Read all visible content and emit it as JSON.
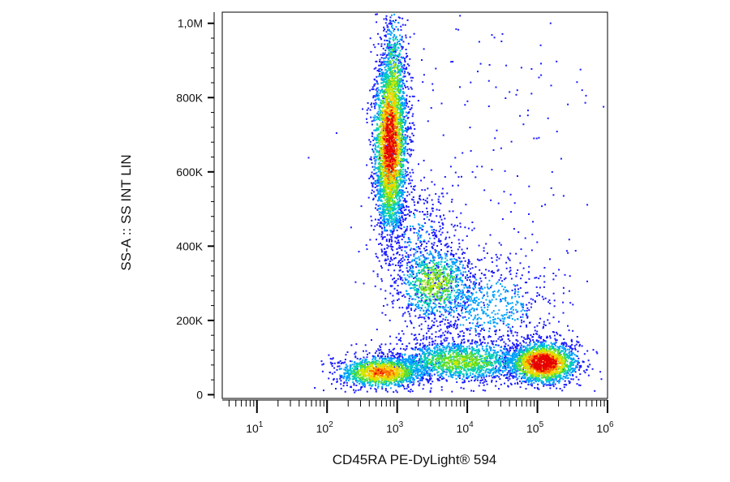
{
  "chart_data": {
    "type": "scatter",
    "style": "flow-cytometry density dot plot",
    "xlabel": "CD45RA PE-DyLight® 594",
    "ylabel": "SS-A :: SS INT LIN",
    "x_scale": "log",
    "xlim": [
      3.2,
      1000000
    ],
    "y_scale": "linear",
    "ylim": [
      -10000,
      1030000
    ],
    "x_ticks": [
      {
        "base": "10",
        "exp": "1",
        "value": 10
      },
      {
        "base": "10",
        "exp": "2",
        "value": 100
      },
      {
        "base": "10",
        "exp": "3",
        "value": 1000
      },
      {
        "base": "10",
        "exp": "4",
        "value": 10000
      },
      {
        "base": "10",
        "exp": "5",
        "value": 100000
      },
      {
        "base": "10",
        "exp": "6",
        "value": 1000000
      }
    ],
    "y_ticks": [
      {
        "label": "0",
        "value": 0
      },
      {
        "label": "200K",
        "value": 200000
      },
      {
        "label": "400K",
        "value": 400000
      },
      {
        "label": "600K",
        "value": 600000
      },
      {
        "label": "800K",
        "value": 800000
      },
      {
        "label": "1,0M",
        "value": 1000000
      }
    ],
    "density_colors": [
      "#1a1aff",
      "#00a0ff",
      "#00d2b4",
      "#66dd22",
      "#d4e800",
      "#ffcc00",
      "#ff6600",
      "#e60000"
    ],
    "populations": [
      {
        "cx": 800,
        "cy": 680000,
        "sx_log10": 0.12,
        "sy": 120000,
        "count": 2600,
        "peak": 0.95
      },
      {
        "cx": 900,
        "cy": 830000,
        "sx_log10": 0.09,
        "sy": 110000,
        "count": 700,
        "peak": 0.5
      },
      {
        "cx": 800,
        "cy": 540000,
        "sx_log10": 0.11,
        "sy": 70000,
        "count": 500,
        "peak": 0.45
      },
      {
        "cx": 600,
        "cy": 60000,
        "sx_log10": 0.32,
        "sy": 22000,
        "count": 1400,
        "peak": 0.75
      },
      {
        "cx": 120000,
        "cy": 85000,
        "sx_log10": 0.25,
        "sy": 28000,
        "count": 2000,
        "peak": 1.0
      },
      {
        "cx": 8000,
        "cy": 90000,
        "sx_log10": 0.55,
        "sy": 30000,
        "count": 1600,
        "peak": 0.45
      },
      {
        "cx": 3500,
        "cy": 300000,
        "sx_log10": 0.28,
        "sy": 55000,
        "count": 900,
        "peak": 0.5
      },
      {
        "cx": 20000,
        "cy": 240000,
        "sx_log10": 0.5,
        "sy": 70000,
        "count": 700,
        "peak": 0.2
      },
      {
        "cx": 2000,
        "cy": 420000,
        "sx_log10": 0.3,
        "sy": 90000,
        "count": 400,
        "peak": 0.15
      },
      {
        "cx": 20000,
        "cy": 650000,
        "sx_log10": 0.8,
        "sy": 220000,
        "count": 160,
        "peak": 0.05
      }
    ]
  }
}
